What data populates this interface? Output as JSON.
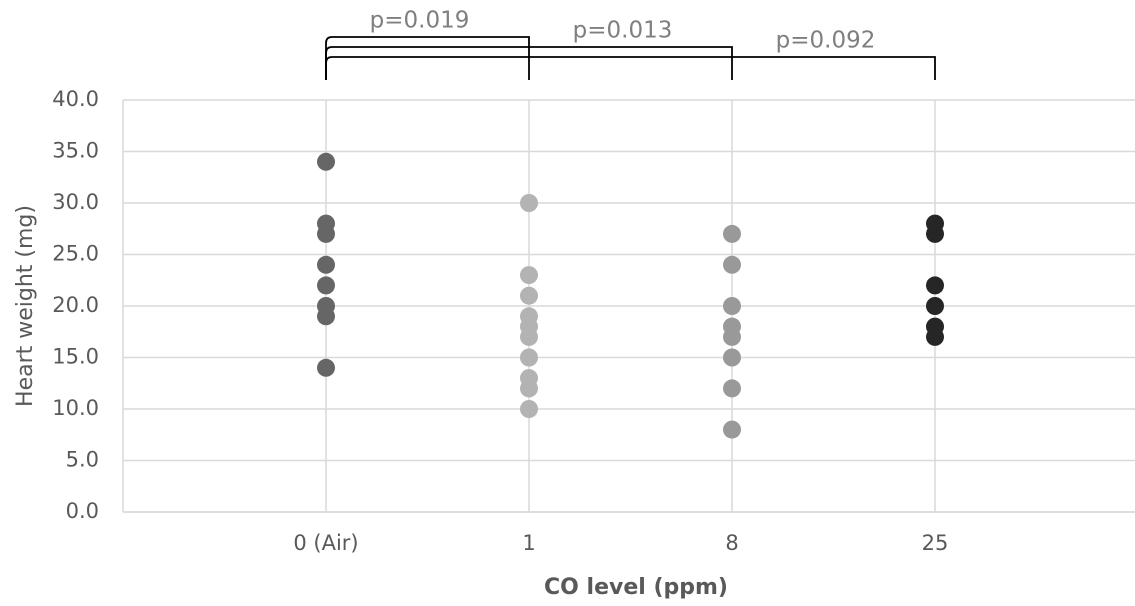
{
  "chart_data": {
    "type": "strip",
    "xlabel": "CO level (ppm)",
    "ylabel": "Heart weight (mg)",
    "categories": [
      "0 (Air)",
      "1",
      "8",
      "25"
    ],
    "colors": [
      "#666666",
      "#b3b3b3",
      "#999999",
      "#262626"
    ],
    "values": [
      [
        34,
        28,
        27,
        24,
        22,
        20,
        19,
        14
      ],
      [
        30,
        23,
        21,
        19,
        18,
        17,
        15,
        13,
        12,
        10
      ],
      [
        27,
        24,
        20,
        18,
        17,
        15,
        12,
        8
      ],
      [
        28,
        27,
        22,
        20,
        18,
        17
      ]
    ],
    "ylim": [
      0,
      40
    ],
    "yticks": [
      {
        "value": 0,
        "label": "0.0"
      },
      {
        "value": 5,
        "label": "5.0"
      },
      {
        "value": 10,
        "label": "10.0"
      },
      {
        "value": 15,
        "label": "15.0"
      },
      {
        "value": 20,
        "label": "20.0"
      },
      {
        "value": 25,
        "label": "25.0"
      },
      {
        "value": 30,
        "label": "30.0"
      },
      {
        "value": 35,
        "label": "35.0"
      },
      {
        "value": 40,
        "label": "40.0"
      }
    ],
    "grid": true,
    "comparisons": [
      {
        "label": "p=0.019",
        "groups": [
          "0 (Air)",
          "1"
        ]
      },
      {
        "label": "p=0.013",
        "groups": [
          "0 (Air)",
          "8"
        ]
      },
      {
        "label": "p=0.092",
        "groups": [
          "0 (Air)",
          "25"
        ]
      }
    ]
  }
}
